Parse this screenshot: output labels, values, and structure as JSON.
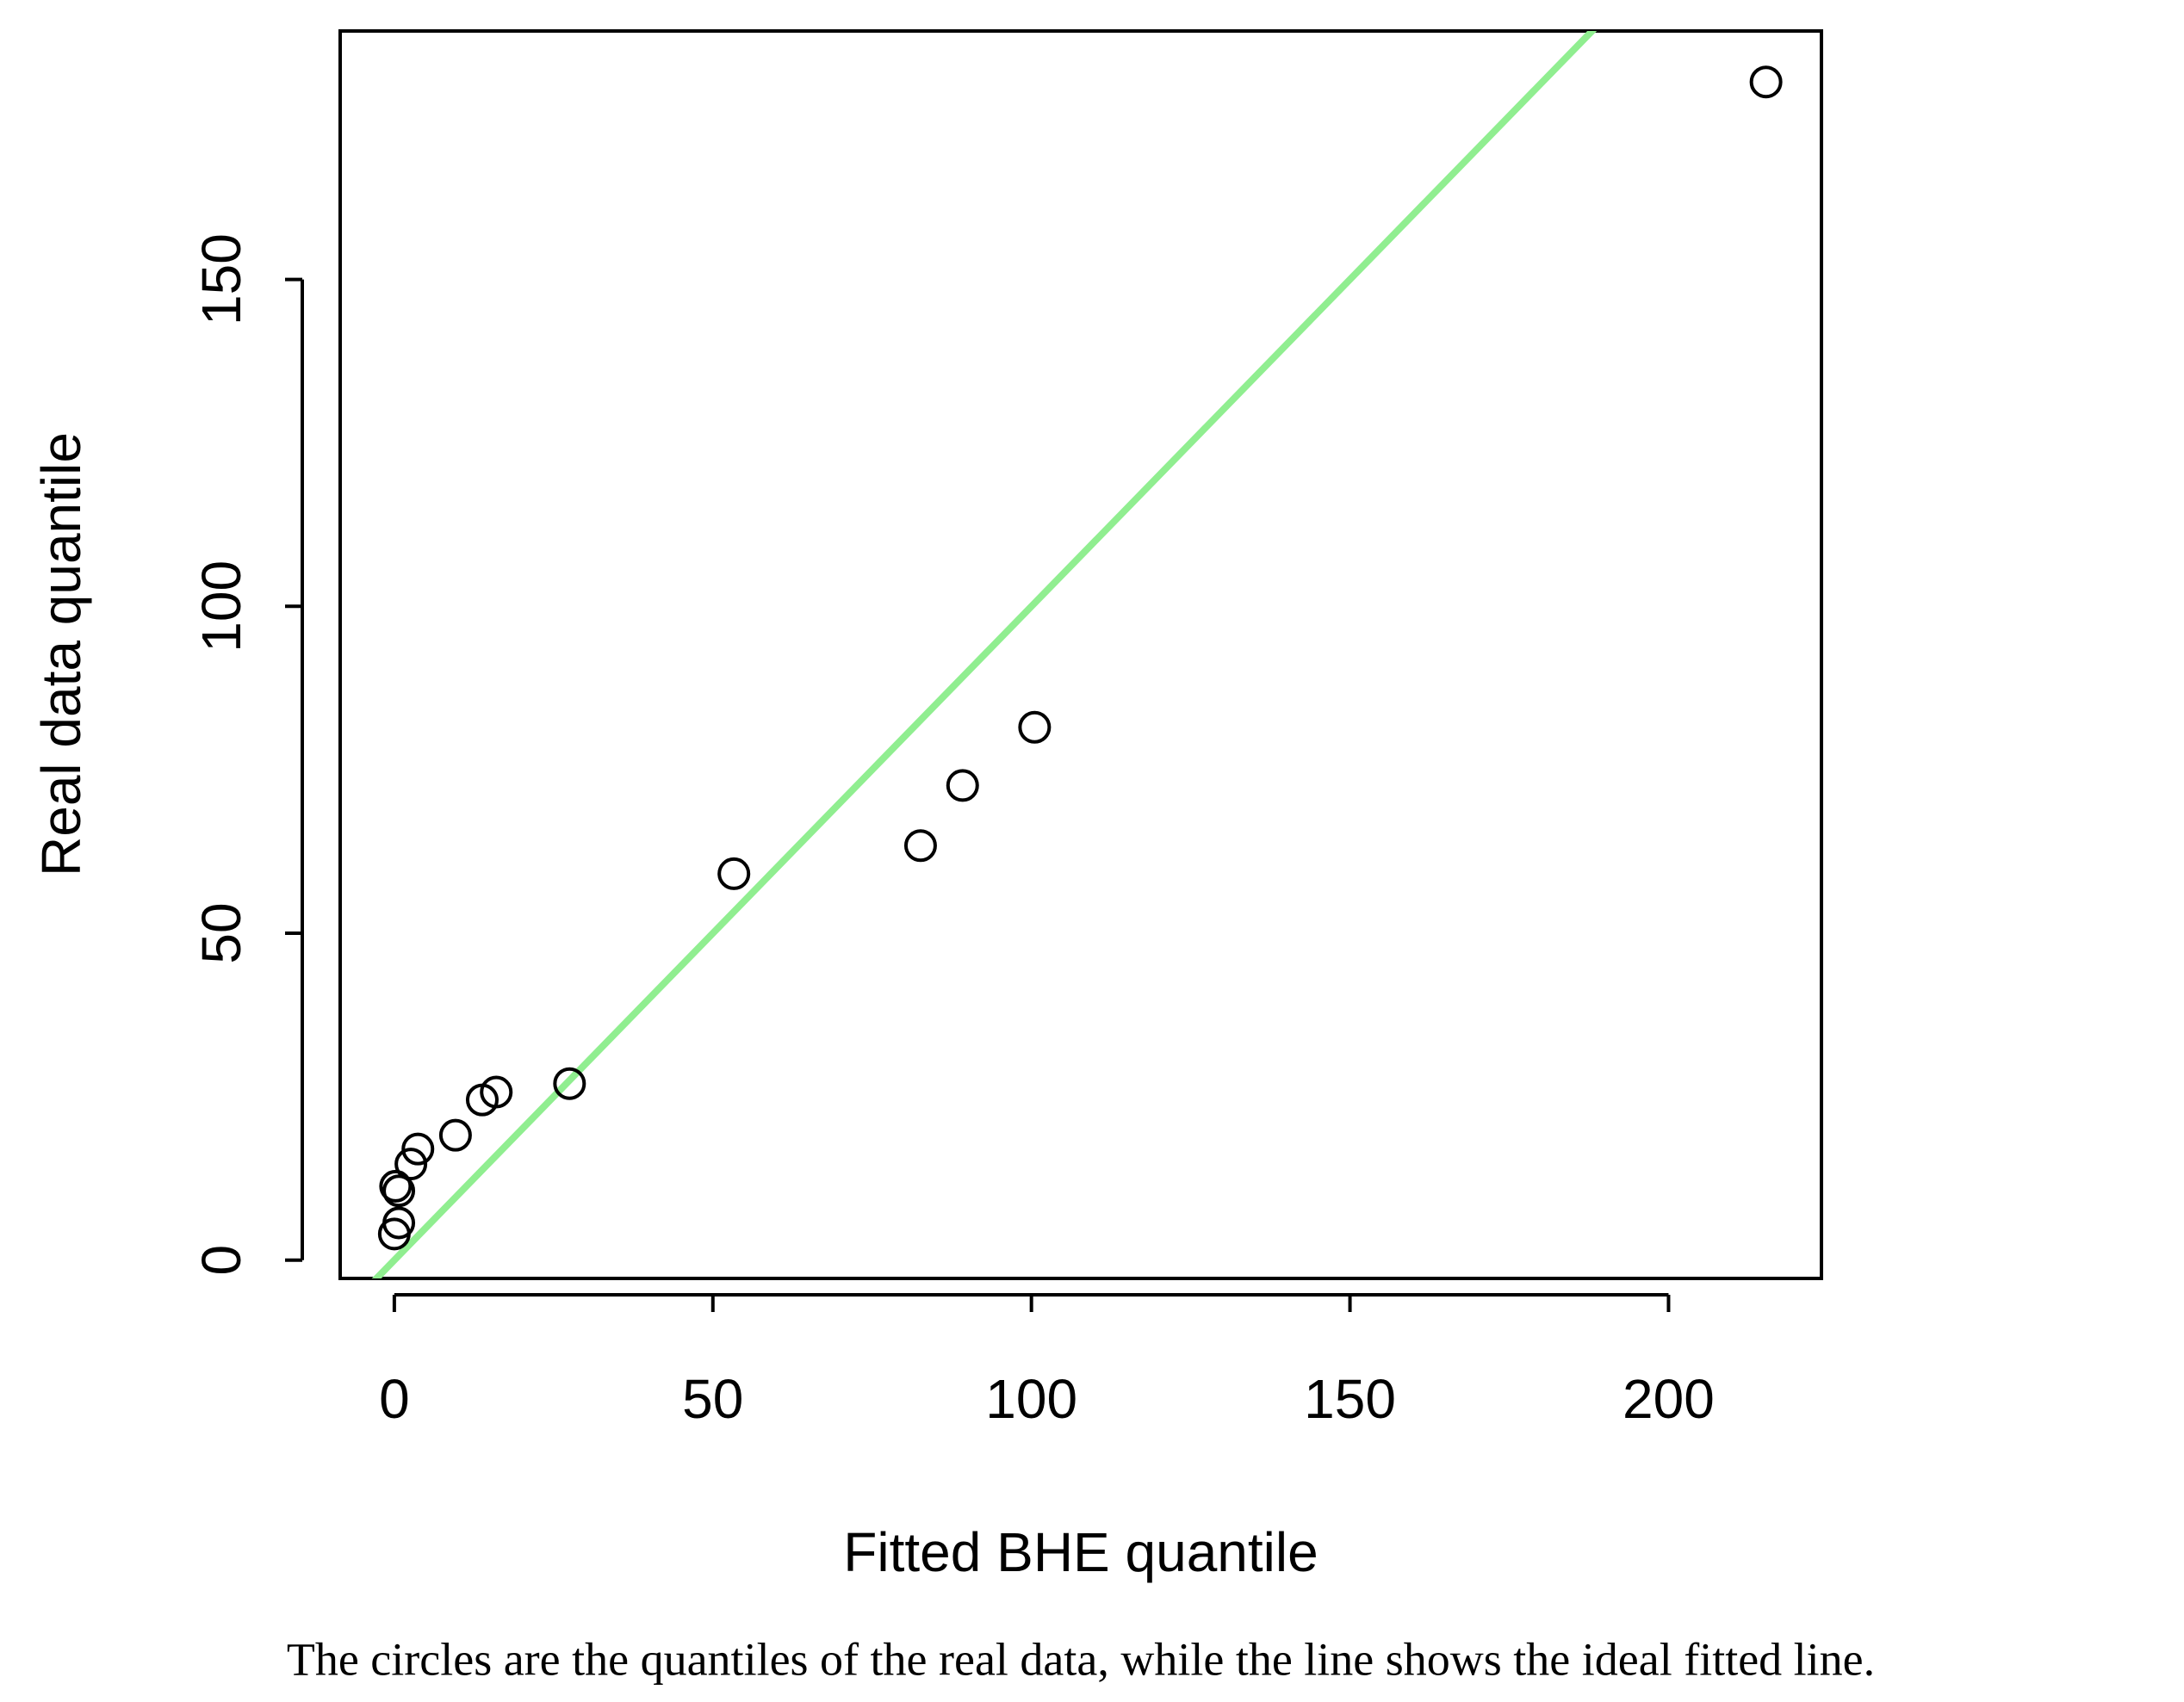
{
  "chart_data": {
    "type": "scatter",
    "x_label": "Fitted BHE quantile",
    "y_label": "Real data quantile",
    "caption": "The circles are the quantiles of the real data, while the line shows the ideal fitted line.",
    "x": [
      215.3,
      100.5,
      89.2,
      82.6,
      53.3,
      27.5,
      16.0,
      13.8,
      9.6,
      3.7,
      2.6,
      0.7,
      0.2,
      0.7,
      0.0
    ],
    "series": [
      {
        "color": "#000000",
        "values": [
          180.2,
          81.5,
          72.6,
          63.4,
          59.1,
          27.0,
          25.7,
          24.5,
          19.1,
          17.0,
          14.7,
          10.6,
          11.3,
          5.7,
          4.0
        ]
      }
    ],
    "reference_line": {
      "slope": 1,
      "intercept": 0,
      "color": "#90ee90"
    },
    "xlim": [
      -8.5,
      224
    ],
    "ylim": [
      -2.8,
      188
    ],
    "xticks": [
      0,
      50,
      100,
      150,
      200
    ],
    "yticks": [
      0,
      50,
      100,
      150
    ]
  }
}
